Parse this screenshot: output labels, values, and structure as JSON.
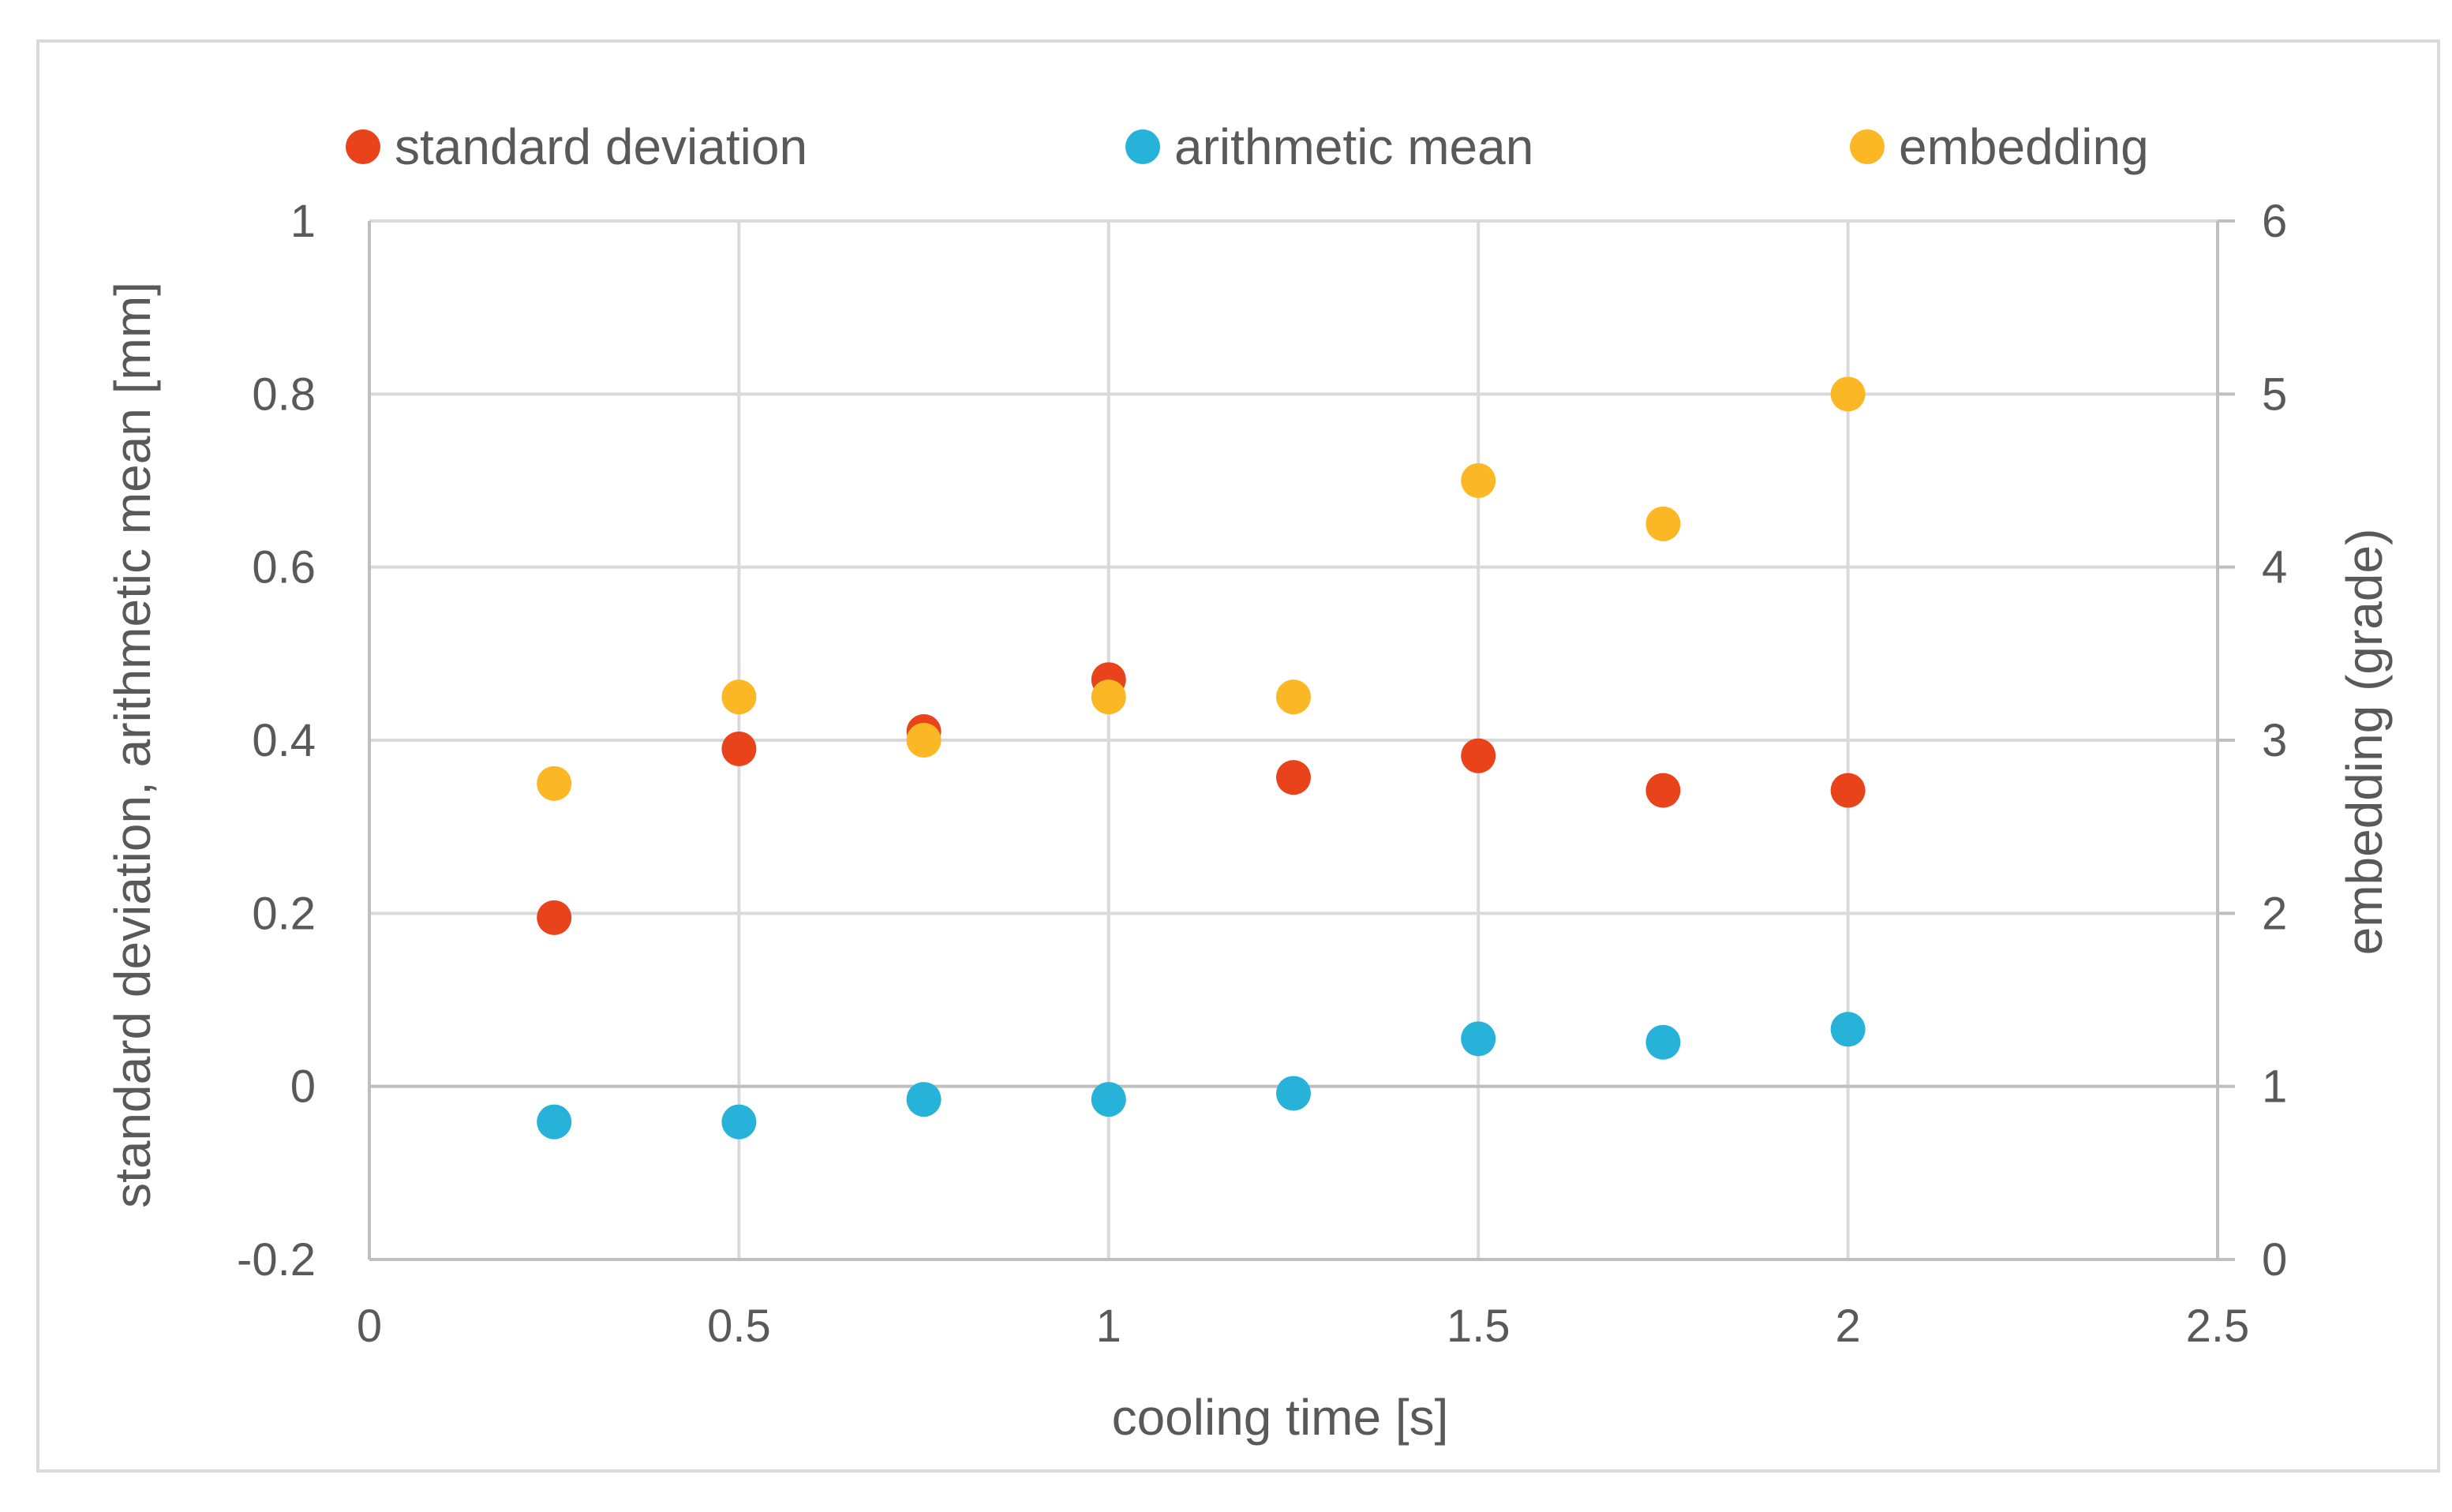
{
  "chart_data": {
    "type": "scatter",
    "title": "",
    "xlabel": "cooling time [s]",
    "ylabel_left": "standard deviation, arithmetic mean [mm]",
    "ylabel_right": "embedding (grade)",
    "xlim": [
      0,
      2.5
    ],
    "ylim_left": [
      -0.2,
      1
    ],
    "ylim_right": [
      0,
      6
    ],
    "grid": true,
    "legend_position": "top",
    "x_ticks": [
      "0",
      "0.5",
      "1",
      "1.5",
      "2",
      "2.5"
    ],
    "y_left_ticks": [
      "-0.2",
      "0",
      "0.2",
      "0.4",
      "0.6",
      "0.8",
      "1"
    ],
    "y_right_ticks": [
      "0",
      "1",
      "2",
      "3",
      "4",
      "5",
      "6"
    ],
    "series": [
      {
        "name": "standard deviation",
        "axis": "left",
        "color": "#e8431a",
        "points": [
          {
            "x": 0.25,
            "y": 0.195
          },
          {
            "x": 0.5,
            "y": 0.39
          },
          {
            "x": 0.75,
            "y": 0.41
          },
          {
            "x": 1.0,
            "y": 0.47
          },
          {
            "x": 1.25,
            "y": 0.357
          },
          {
            "x": 1.5,
            "y": 0.382
          },
          {
            "x": 1.75,
            "y": 0.342
          },
          {
            "x": 2.0,
            "y": 0.342
          }
        ]
      },
      {
        "name": "arithmetic mean",
        "axis": "left",
        "color": "#26b2d9",
        "points": [
          {
            "x": 0.25,
            "y": -0.041
          },
          {
            "x": 0.5,
            "y": -0.041
          },
          {
            "x": 0.75,
            "y": -0.015
          },
          {
            "x": 1.0,
            "y": -0.015
          },
          {
            "x": 1.25,
            "y": -0.008
          },
          {
            "x": 1.5,
            "y": 0.055
          },
          {
            "x": 1.75,
            "y": 0.051
          },
          {
            "x": 2.0,
            "y": 0.066
          }
        ]
      },
      {
        "name": "embedding",
        "axis": "right",
        "color": "#fbb824",
        "points": [
          {
            "x": 0.25,
            "y": 2.75
          },
          {
            "x": 0.5,
            "y": 3.25
          },
          {
            "x": 0.75,
            "y": 3.0
          },
          {
            "x": 1.0,
            "y": 3.25
          },
          {
            "x": 1.25,
            "y": 3.25
          },
          {
            "x": 1.5,
            "y": 4.5
          },
          {
            "x": 1.75,
            "y": 4.25
          },
          {
            "x": 2.0,
            "y": 5.0
          }
        ]
      }
    ]
  }
}
